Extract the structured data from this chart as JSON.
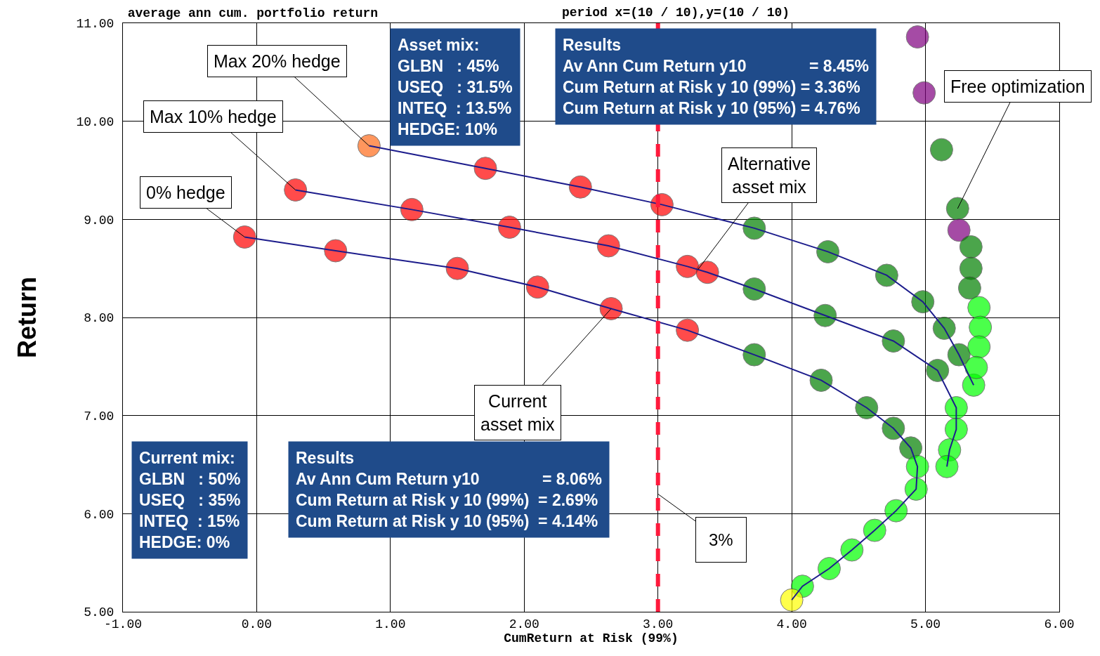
{
  "chart_data": {
    "type": "line",
    "title": "average ann cum. portfolio return",
    "subtitle": "period x=(10 / 10),y=(10 / 10)",
    "xlabel": "CumReturn at Risk (99%)",
    "ylabel": "Return",
    "xlim": [
      -1,
      6
    ],
    "xticks": [
      {
        "value": -1,
        "label": "-1.00"
      },
      {
        "value": 0,
        "label": "0.00"
      },
      {
        "value": 1,
        "label": "1.00"
      },
      {
        "value": 2,
        "label": "2.00"
      },
      {
        "value": 3,
        "label": "3.00"
      },
      {
        "value": 4,
        "label": "4.00"
      },
      {
        "value": 5,
        "label": "5.00"
      },
      {
        "value": 6,
        "label": "6.00"
      }
    ],
    "ylim": [
      5,
      11
    ],
    "yticks": [
      {
        "value": 5,
        "label": "5.00"
      },
      {
        "value": 6,
        "label": "6.00"
      },
      {
        "value": 7,
        "label": "7.00"
      },
      {
        "value": 8,
        "label": "8.00"
      },
      {
        "value": 9,
        "label": "9.00"
      },
      {
        "value": 10,
        "label": "10.00"
      },
      {
        "value": 11,
        "label": "11.00"
      }
    ],
    "grid": true,
    "marker": "circle",
    "series": [
      {
        "color": "#1c1c8c",
        "x": [
          -0.09,
          0.59,
          1.5,
          2.1,
          2.65,
          3.22,
          3.72,
          4.22,
          4.56,
          4.76,
          4.89,
          4.94,
          4.93,
          4.78,
          4.62,
          4.45,
          4.28,
          4.08,
          4.0
        ],
        "values": [
          8.82,
          8.68,
          8.5,
          8.31,
          8.09,
          7.87,
          7.62,
          7.36,
          7.08,
          6.87,
          6.67,
          6.48,
          6.25,
          6.03,
          5.83,
          5.63,
          5.44,
          5.26,
          5.12
        ],
        "colors": [
          "#ff0000",
          "#ff0000",
          "#ff0000",
          "#ff0000",
          "#ff0000",
          "#ff0000",
          "#008000",
          "#008000",
          "#008000",
          "#008000",
          "#008000",
          "#00ff00",
          "#00ff00",
          "#00ff00",
          "#00ff00",
          "#00ff00",
          "#00ff00",
          "#00ff00",
          "#ffff00"
        ]
      },
      {
        "color": "#1c1c8c",
        "x": [
          0.29,
          1.16,
          1.89,
          2.63,
          3.22,
          3.37,
          3.72,
          4.25,
          4.76,
          5.09,
          5.23,
          5.23,
          5.18,
          5.16
        ],
        "values": [
          9.3,
          9.1,
          8.92,
          8.73,
          8.52,
          8.46,
          8.29,
          8.02,
          7.76,
          7.46,
          7.08,
          6.86,
          6.65,
          6.48
        ],
        "colors": [
          "#ff0000",
          "#ff0000",
          "#ff0000",
          "#ff0000",
          "#ff0000",
          "#ff0000",
          "#008000",
          "#008000",
          "#008000",
          "#008000",
          "#00ff00",
          "#00ff00",
          "#00ff00",
          "#00ff00"
        ]
      },
      {
        "color": "#1c1c8c",
        "x": [
          0.84,
          1.71,
          2.42,
          3.03,
          3.72,
          4.27,
          4.71,
          4.98,
          5.14,
          5.25,
          5.36
        ],
        "values": [
          9.75,
          9.52,
          9.33,
          9.15,
          8.91,
          8.67,
          8.43,
          8.16,
          7.89,
          7.62,
          7.31
        ],
        "colors": [
          "#ff6a1a",
          "#ff0000",
          "#ff0000",
          "#ff0000",
          "#008000",
          "#008000",
          "#008000",
          "#008000",
          "#008000",
          "#008000",
          "#00ff00"
        ]
      },
      {
        "type": "scatter",
        "color": "#800080",
        "x": [
          4.94,
          4.99,
          5.12,
          5.24,
          5.25,
          5.34,
          5.34,
          5.33,
          5.4,
          5.41,
          5.4,
          5.38
        ],
        "values": [
          10.86,
          10.29,
          9.71,
          9.11,
          8.89,
          8.72,
          8.5,
          8.3,
          8.1,
          7.9,
          7.7,
          7.49
        ],
        "colors": [
          "#800080",
          "#800080",
          "#008000",
          "#008000",
          "#800080",
          "#008000",
          "#008000",
          "#008000",
          "#00ff00",
          "#00ff00",
          "#00ff00",
          "#00ff00"
        ]
      }
    ],
    "ref_lines": [
      {
        "axis": "x",
        "value": 3,
        "label": "3%",
        "color": "#ff1a3c",
        "line_style": "dashed"
      }
    ],
    "annotations": [
      {
        "text": "Max 20% hedge",
        "x": 0.84,
        "y": 9.75
      },
      {
        "text": "Max 10% hedge",
        "x": 0.29,
        "y": 9.3
      },
      {
        "text": "0% hedge",
        "x": -0.09,
        "y": 8.82
      },
      {
        "text": "Alternative\nasset mix",
        "x": 3.3,
        "y": 8.49
      },
      {
        "text": "Current\nasset mix",
        "x": 2.65,
        "y": 8.09
      },
      {
        "text": "Free optimization",
        "x": 5.24,
        "y": 9.11
      },
      "Asset mix:\nGLBN   : 45%\nUSEQ   : 31.5%\nINTEQ  : 13.5%\nHEDGE: 10%",
      "Results\nAv Ann Cum Return y10              = 8.45%\nCum Return at Risk y 10 (99%) = 3.36%\nCum Return at Risk y 10 (95%) = 4.76%",
      "Current mix:\nGLBN   : 50%\nUSEQ   : 35%\nINTEQ  : 15%\nHEDGE: 0%",
      "Results\nAv Ann Cum Return y10              = 8.06%\nCum Return at Risk y 10 (99%)  = 2.69%\nCum Return at Risk y 10 (95%)  = 4.14%"
    ]
  }
}
